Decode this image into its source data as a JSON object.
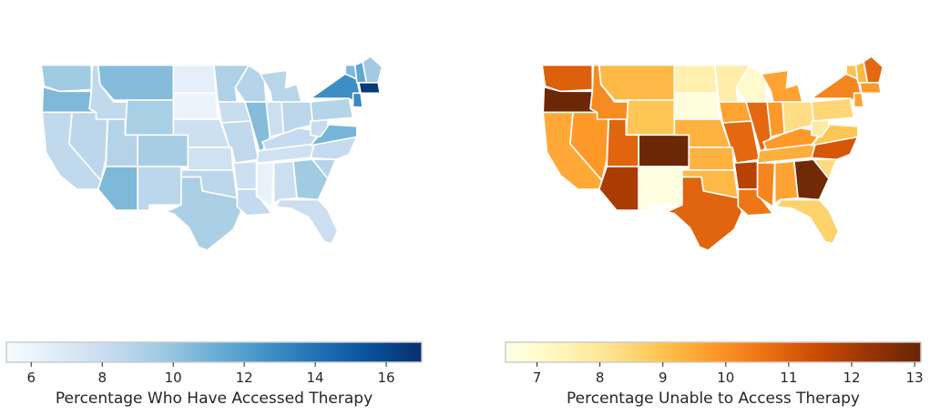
{
  "chart_data": [
    {
      "type": "choropleth",
      "colormap": "Blues",
      "colorbar": {
        "min": 5.3,
        "max": 17.0,
        "ticks": [
          6,
          8,
          10,
          12,
          14,
          16
        ],
        "label": "Percentage Who Have Accessed Therapy"
      },
      "regions": [
        {
          "id": "WA",
          "value": 9.6
        },
        {
          "id": "OR",
          "value": 10.6
        },
        {
          "id": "CA",
          "value": 8.4
        },
        {
          "id": "NV",
          "value": 8.6
        },
        {
          "id": "ID",
          "value": 8.4
        },
        {
          "id": "MT",
          "value": 10.4
        },
        {
          "id": "WY",
          "value": 9.3
        },
        {
          "id": "UT",
          "value": 8.9
        },
        {
          "id": "CO",
          "value": 9.4
        },
        {
          "id": "AZ",
          "value": 10.6
        },
        {
          "id": "NM",
          "value": 8.6
        },
        {
          "id": "ND",
          "value": 6.4
        },
        {
          "id": "SD",
          "value": 6.0
        },
        {
          "id": "NE",
          "value": 7.8
        },
        {
          "id": "KS",
          "value": 7.6
        },
        {
          "id": "OK",
          "value": 8.6
        },
        {
          "id": "TX",
          "value": 9.2
        },
        {
          "id": "MN",
          "value": 9.1
        },
        {
          "id": "IA",
          "value": 8.0
        },
        {
          "id": "MO",
          "value": 8.4
        },
        {
          "id": "AR",
          "value": 7.8
        },
        {
          "id": "LA",
          "value": 8.3
        },
        {
          "id": "WI",
          "value": 8.8
        },
        {
          "id": "IL",
          "value": 10.4
        },
        {
          "id": "MS",
          "value": 6.1
        },
        {
          "id": "MI",
          "value": 8.7
        },
        {
          "id": "IN",
          "value": 7.9
        },
        {
          "id": "KY",
          "value": 8.2
        },
        {
          "id": "TN",
          "value": 7.6
        },
        {
          "id": "AL",
          "value": 7.9
        },
        {
          "id": "OH",
          "value": 8.6
        },
        {
          "id": "GA",
          "value": 9.6
        },
        {
          "id": "FL",
          "value": 7.9
        },
        {
          "id": "SC",
          "value": 8.8
        },
        {
          "id": "NC",
          "value": 8.2
        },
        {
          "id": "VA",
          "value": 10.8
        },
        {
          "id": "WV",
          "value": 8.1
        },
        {
          "id": "PA",
          "value": 8.8
        },
        {
          "id": "NY",
          "value": 12.8
        },
        {
          "id": "VT",
          "value": 10.6
        },
        {
          "id": "NH",
          "value": 11.5
        },
        {
          "id": "ME",
          "value": 9.6
        },
        {
          "id": "MA",
          "value": 16.6
        },
        {
          "id": "CT",
          "value": 13.0
        }
      ]
    },
    {
      "type": "choropleth",
      "colormap": "YlOrBr",
      "colorbar": {
        "min": 6.5,
        "max": 13.1,
        "ticks": [
          7,
          8,
          9,
          10,
          11,
          12,
          13
        ],
        "label": "Percentage Unable to Access Therapy"
      },
      "regions": [
        {
          "id": "WA",
          "value": 11.0
        },
        {
          "id": "OR",
          "value": 13.0
        },
        {
          "id": "CA",
          "value": 9.5
        },
        {
          "id": "NV",
          "value": 9.8
        },
        {
          "id": "ID",
          "value": 10.1
        },
        {
          "id": "MT",
          "value": 9.2
        },
        {
          "id": "WY",
          "value": 8.9
        },
        {
          "id": "UT",
          "value": 10.9
        },
        {
          "id": "CO",
          "value": 13.0
        },
        {
          "id": "AZ",
          "value": 12.0
        },
        {
          "id": "NM",
          "value": 6.6
        },
        {
          "id": "ND",
          "value": 7.6
        },
        {
          "id": "SD",
          "value": 6.7
        },
        {
          "id": "NE",
          "value": 9.3
        },
        {
          "id": "KS",
          "value": 9.3
        },
        {
          "id": "OK",
          "value": 9.2
        },
        {
          "id": "TX",
          "value": 10.9
        },
        {
          "id": "MN",
          "value": 7.7
        },
        {
          "id": "IA",
          "value": 9.6
        },
        {
          "id": "MO",
          "value": 10.8
        },
        {
          "id": "AR",
          "value": 11.8
        },
        {
          "id": "LA",
          "value": 10.5
        },
        {
          "id": "WI",
          "value": 7.0
        },
        {
          "id": "IL",
          "value": 10.8
        },
        {
          "id": "MS",
          "value": 10.2
        },
        {
          "id": "MI",
          "value": 9.6
        },
        {
          "id": "IN",
          "value": 9.8
        },
        {
          "id": "KY",
          "value": 9.8
        },
        {
          "id": "TN",
          "value": 9.4
        },
        {
          "id": "AL",
          "value": 9.6
        },
        {
          "id": "OH",
          "value": 8.3
        },
        {
          "id": "GA",
          "value": 12.9
        },
        {
          "id": "FL",
          "value": 8.6
        },
        {
          "id": "SC",
          "value": 8.4
        },
        {
          "id": "NC",
          "value": 11.2
        },
        {
          "id": "VA",
          "value": 8.9
        },
        {
          "id": "WV",
          "value": 7.8
        },
        {
          "id": "PA",
          "value": 8.5
        },
        {
          "id": "NY",
          "value": 10.2
        },
        {
          "id": "VT",
          "value": 9.0
        },
        {
          "id": "NH",
          "value": 9.2
        },
        {
          "id": "ME",
          "value": 10.8
        },
        {
          "id": "MA",
          "value": 9.8
        },
        {
          "id": "CT",
          "value": 9.6
        }
      ]
    }
  ]
}
